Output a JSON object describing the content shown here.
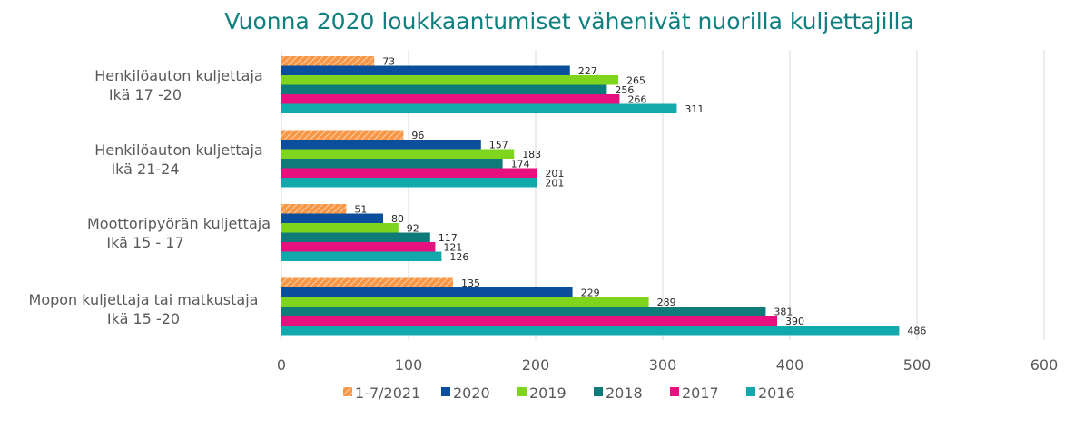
{
  "chart_data": {
    "type": "bar",
    "orientation": "horizontal",
    "title": "Vuonna 2020 loukkaantumiset vähenivät nuorilla kuljettajilla",
    "categories": [
      [
        "Henkilöauton kuljettaja",
        "Ikä 17 -20"
      ],
      [
        "Henkilöauton kuljettaja",
        "Ikä 21-24"
      ],
      [
        "Moottoripyörän kuljettaja",
        "Ikä 15 - 17"
      ],
      [
        "Mopon kuljettaja tai matkustaja",
        "Ikä 15 -20"
      ]
    ],
    "series": [
      {
        "name": "1-7/2021",
        "color": "#f79646",
        "pattern": "hatched",
        "values": [
          73,
          96,
          51,
          135
        ]
      },
      {
        "name": "2020",
        "color": "#0b4f9c",
        "values": [
          227,
          157,
          80,
          229
        ]
      },
      {
        "name": "2019",
        "color": "#7fd41e",
        "values": [
          265,
          183,
          92,
          289
        ]
      },
      {
        "name": "2018",
        "color": "#0f7b78",
        "values": [
          256,
          174,
          117,
          381
        ]
      },
      {
        "name": "2017",
        "color": "#e6117f",
        "values": [
          266,
          201,
          121,
          390
        ]
      },
      {
        "name": "2016",
        "color": "#12a9ad",
        "values": [
          311,
          201,
          126,
          486
        ]
      }
    ],
    "xlim": [
      0,
      600
    ],
    "xticks": [
      0,
      100,
      200,
      300,
      400,
      500,
      600
    ],
    "grid": true,
    "legend": "bottom"
  }
}
